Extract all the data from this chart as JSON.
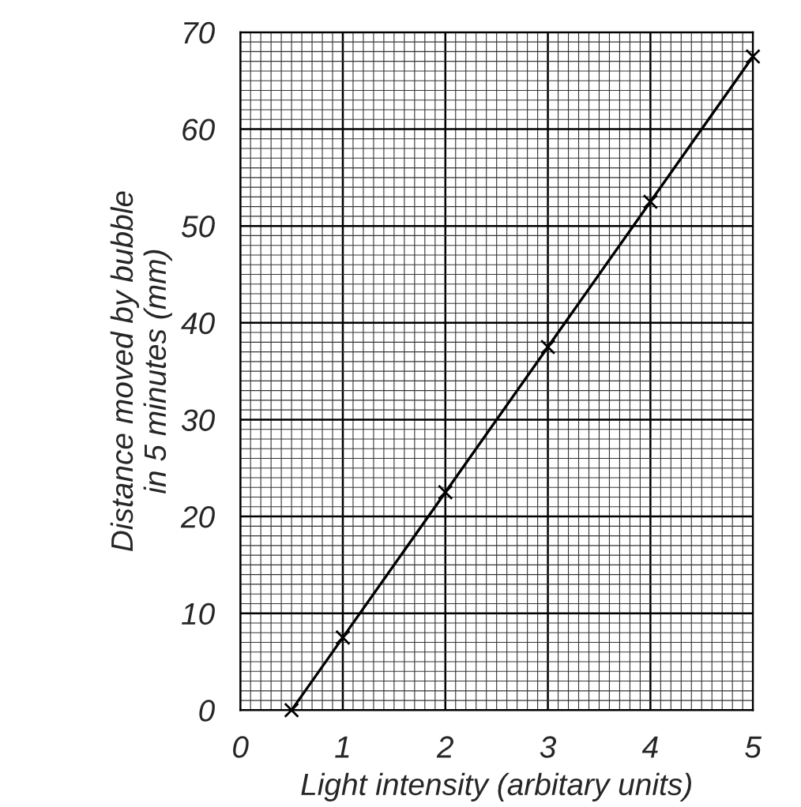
{
  "chart_data": {
    "type": "line",
    "xlabel": "Light intensity (arbitary units)",
    "ylabel": "Distance moved by bubble\nin 5 minutes (mm)",
    "x": [
      0.5,
      1,
      2,
      3,
      4,
      5
    ],
    "series": [
      {
        "color": "#000000",
        "values": [
          0,
          7.5,
          22.5,
          37.5,
          52.5,
          67.5
        ]
      }
    ],
    "xlim": [
      0,
      5
    ],
    "ylim": [
      0,
      70
    ],
    "xticks": [
      0,
      1,
      2,
      3,
      4,
      5
    ],
    "yticks": [
      0,
      10,
      20,
      30,
      40,
      50,
      60,
      70
    ],
    "grid": true,
    "marker": "cross",
    "line_style": "solid"
  }
}
